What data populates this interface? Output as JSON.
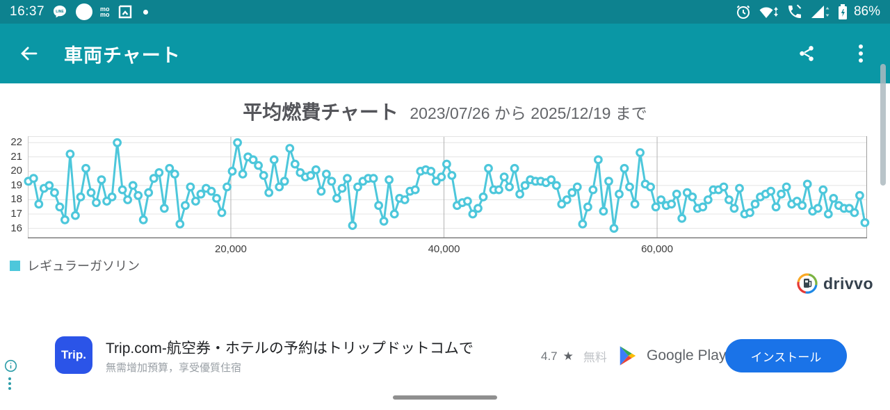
{
  "status_bar": {
    "time": "16:37",
    "battery_percent": "86%",
    "left_icons": [
      "line-icon",
      "circle-icon",
      "momo-icon",
      "bookmark-icon",
      "notification-dot"
    ],
    "right_icons": [
      "alarm-icon",
      "wifi-icon",
      "phone-icon",
      "signal-icon",
      "battery-icon"
    ],
    "momo_line1": "mo",
    "momo_line2": "mo"
  },
  "app_bar": {
    "title": "車両チャート",
    "actions": [
      "share",
      "overflow-menu"
    ]
  },
  "chart": {
    "title": "平均燃費チャート",
    "subtitle": "2023/07/26 から 2025/12/19 まで"
  },
  "chart_data": {
    "type": "line",
    "title": "平均燃費チャート",
    "subtitle_range": "2023/07/26 から 2025/12/19 まで",
    "legend_position": "bottom-left",
    "grid": true,
    "x_axis": {
      "min": 950,
      "max": 79700,
      "first_point": 1000,
      "last_point": 79500,
      "ticks": [
        20000,
        40000,
        60000
      ],
      "tick_labels": [
        "20,000",
        "40,000",
        "60,000"
      ],
      "unit": "odometer km, points approximately evenly spaced"
    },
    "y_axis": {
      "min": 15.3,
      "max": 22.45,
      "ticks": [
        16,
        17,
        18,
        19,
        20,
        21,
        22
      ]
    },
    "series": [
      {
        "name": "レギュラーガソリン",
        "color": "#4dc7db",
        "values": [
          19.3,
          19.5,
          17.7,
          18.8,
          19.0,
          18.5,
          17.5,
          16.6,
          21.2,
          16.9,
          18.2,
          20.2,
          18.5,
          17.8,
          19.4,
          17.9,
          18.2,
          22.0,
          18.7,
          18.0,
          19.0,
          18.3,
          16.6,
          18.5,
          19.5,
          19.9,
          17.4,
          20.2,
          19.8,
          16.3,
          17.6,
          18.9,
          17.9,
          18.4,
          18.8,
          18.6,
          18.1,
          17.1,
          18.9,
          20.0,
          22.0,
          19.8,
          21.0,
          20.8,
          20.4,
          19.7,
          18.5,
          20.8,
          18.9,
          19.3,
          21.6,
          20.5,
          19.9,
          19.6,
          19.7,
          20.1,
          18.6,
          19.8,
          19.3,
          18.1,
          18.8,
          19.5,
          16.2,
          18.9,
          19.3,
          19.5,
          19.5,
          17.6,
          16.5,
          19.4,
          17.0,
          18.1,
          18.0,
          18.6,
          18.7,
          20.0,
          20.1,
          20.0,
          19.3,
          19.6,
          20.5,
          19.7,
          17.6,
          17.8,
          17.9,
          17.0,
          17.4,
          18.2,
          20.2,
          18.7,
          18.7,
          19.6,
          18.9,
          20.2,
          18.4,
          19.0,
          19.4,
          19.3,
          19.3,
          19.2,
          19.4,
          19.0,
          17.7,
          18.0,
          18.5,
          18.9,
          16.3,
          17.5,
          18.7,
          20.8,
          17.2,
          19.3,
          16.0,
          18.4,
          20.2,
          18.9,
          17.7,
          21.3,
          19.1,
          18.9,
          17.5,
          18.0,
          17.6,
          17.7,
          18.4,
          16.7,
          18.5,
          18.2,
          17.4,
          17.5,
          18.0,
          18.7,
          18.7,
          18.9,
          18.0,
          17.4,
          18.8,
          17.0,
          17.1,
          17.7,
          18.2,
          18.4,
          18.6,
          17.5,
          18.4,
          18.9,
          17.7,
          17.9,
          17.6,
          19.1,
          17.2,
          17.4,
          18.7,
          17.0,
          18.1,
          17.6,
          17.4,
          17.4,
          17.1,
          18.3,
          16.4
        ]
      }
    ]
  },
  "branding": {
    "logo_text": "drivvo"
  },
  "ad": {
    "icon_text": "Trip.",
    "title": "Trip.com-航空券・ホテルの予約はトリップドットコムで",
    "subtitle": "無需增加預算，享受優質住宿",
    "rating": "4.7",
    "star": "★",
    "price": "無料",
    "store": "Google Play",
    "install_label": "インストール"
  },
  "colors": {
    "status_bar": "#0d828f",
    "app_bar": "#0a97a5",
    "accent_teal": "#0097a7",
    "chart_line": "#4dc7db",
    "install_button": "#1a73e8",
    "trip_brand": "#2b54e8"
  }
}
